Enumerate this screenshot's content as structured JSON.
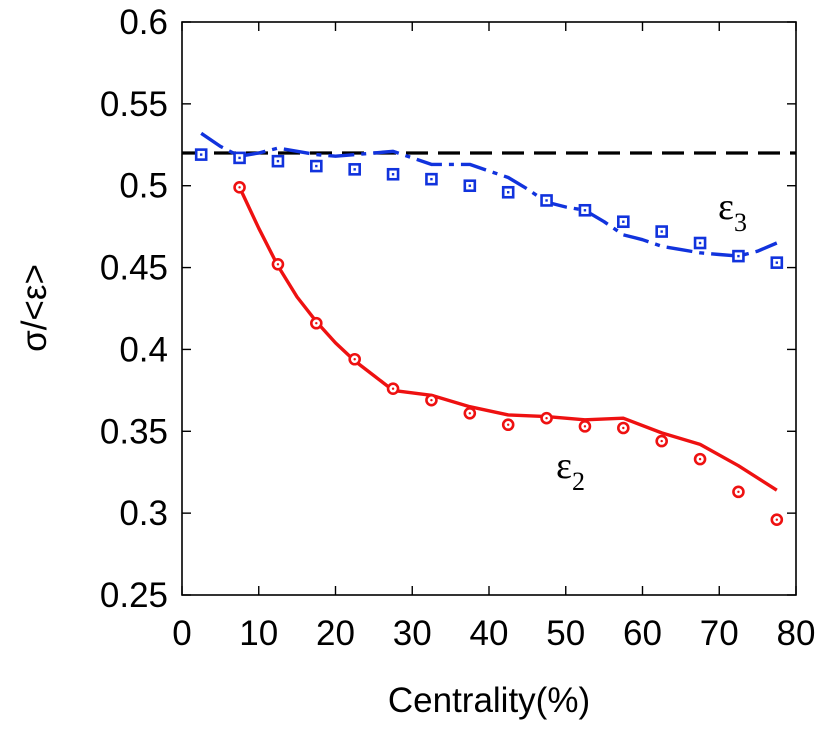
{
  "chart_data": {
    "type": "line",
    "xlabel": "Centrality(%)",
    "ylabel": "σ/<ε>",
    "xlim": [
      0,
      80
    ],
    "ylim": [
      0.25,
      0.6
    ],
    "xticks": [
      0,
      10,
      20,
      30,
      40,
      50,
      60,
      70,
      80
    ],
    "yticks": [
      0.25,
      0.3,
      0.35,
      0.4,
      0.45,
      0.5,
      0.55,
      0.6
    ],
    "xtick_labels": [
      "0",
      "10",
      "20",
      "30",
      "40",
      "50",
      "60",
      "70",
      "80"
    ],
    "ytick_labels": [
      "0.25",
      "0.3",
      "0.35",
      "0.4",
      "0.45",
      "0.5",
      "0.55",
      "0.6"
    ],
    "grid": false,
    "reference_line": {
      "y": 0.52,
      "style": "dashed",
      "color": "#000000"
    },
    "series": [
      {
        "label": "ε2",
        "label_main": "ε",
        "label_sub": "2",
        "color": "#ee1111",
        "curve_style": "solid",
        "marker": "circle",
        "curve": {
          "x": [
            7.5,
            10,
            12.5,
            15,
            17.5,
            20,
            22.5,
            25,
            27.5,
            32.5,
            37.5,
            42.5,
            47.5,
            52.5,
            57.5,
            62.5,
            67.5,
            72.5,
            77.5
          ],
          "y": [
            0.499,
            0.474,
            0.451,
            0.432,
            0.417,
            0.404,
            0.393,
            0.384,
            0.375,
            0.372,
            0.365,
            0.36,
            0.359,
            0.357,
            0.358,
            0.349,
            0.342,
            0.329,
            0.314
          ]
        },
        "points": {
          "x": [
            7.5,
            12.5,
            17.5,
            22.5,
            27.5,
            32.5,
            37.5,
            42.5,
            47.5,
            52.5,
            57.5,
            62.5,
            67.5,
            72.5,
            77.5
          ],
          "y": [
            0.499,
            0.452,
            0.416,
            0.394,
            0.376,
            0.369,
            0.361,
            0.354,
            0.358,
            0.353,
            0.352,
            0.344,
            0.333,
            0.313,
            0.296
          ]
        }
      },
      {
        "label": "ε3",
        "label_main": "ε",
        "label_sub": "3",
        "color": "#1133dd",
        "curve_style": "dashdot",
        "marker": "square",
        "curve": {
          "x": [
            2.5,
            5,
            7.5,
            10,
            12.5,
            15,
            17.5,
            20,
            22.5,
            25,
            27.5,
            30,
            32.5,
            35,
            37.5,
            40,
            42.5,
            45,
            47.5,
            50,
            52.5,
            55,
            57.5,
            60,
            62.5,
            65,
            67.5,
            70,
            72.5,
            75,
            77.5
          ],
          "y": [
            0.532,
            0.524,
            0.518,
            0.52,
            0.523,
            0.521,
            0.519,
            0.518,
            0.519,
            0.52,
            0.521,
            0.517,
            0.513,
            0.513,
            0.513,
            0.509,
            0.505,
            0.498,
            0.49,
            0.487,
            0.485,
            0.478,
            0.47,
            0.467,
            0.463,
            0.461,
            0.459,
            0.458,
            0.457,
            0.46,
            0.465
          ]
        },
        "points": {
          "x": [
            2.5,
            7.5,
            12.5,
            17.5,
            22.5,
            27.5,
            32.5,
            37.5,
            42.5,
            47.5,
            52.5,
            57.5,
            62.5,
            67.5,
            72.5,
            77.5
          ],
          "y": [
            0.519,
            0.517,
            0.515,
            0.512,
            0.51,
            0.507,
            0.504,
            0.5,
            0.496,
            0.491,
            0.485,
            0.478,
            0.472,
            0.465,
            0.457,
            0.453
          ]
        }
      }
    ]
  }
}
